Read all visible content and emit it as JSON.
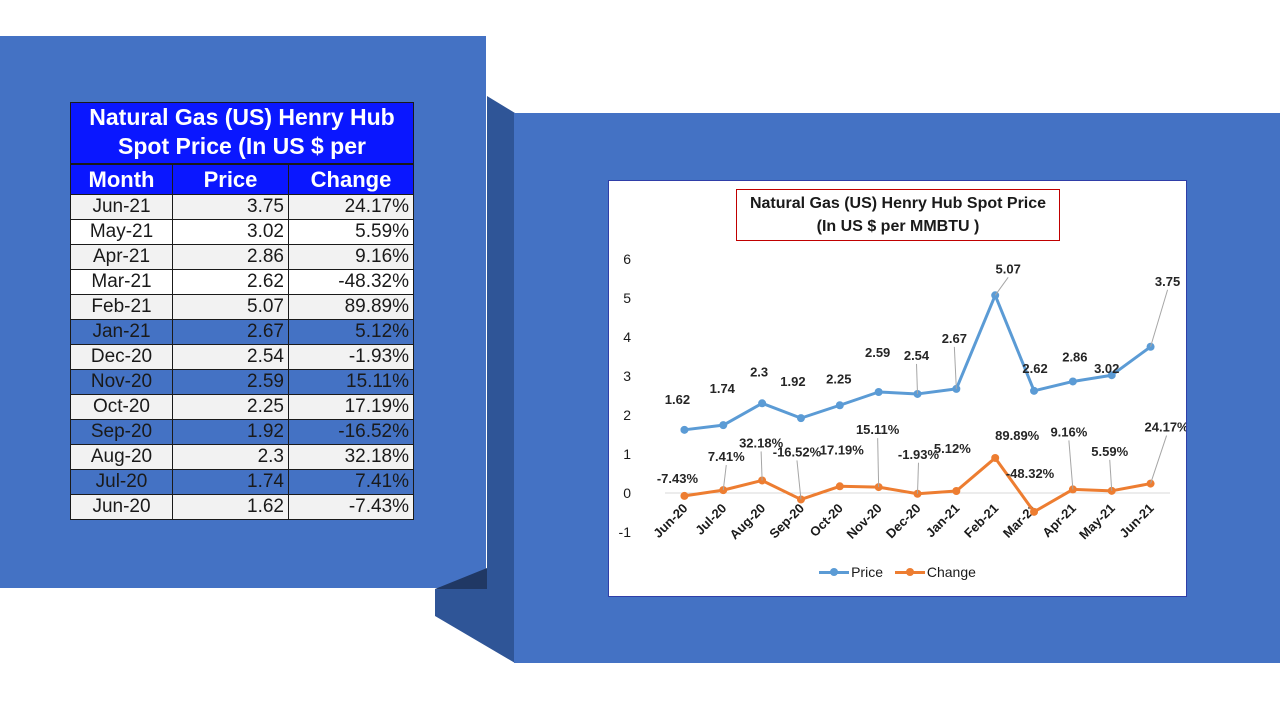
{
  "table": {
    "title": "Natural Gas (US) Henry Hub Spot Price (In US $ per",
    "headers": [
      "Month",
      "Price",
      "Change"
    ],
    "rows": [
      {
        "month": "Jun-21",
        "price": "3.75",
        "change": "24.17%",
        "style": "light"
      },
      {
        "month": "May-21",
        "price": "3.02",
        "change": "5.59%",
        "style": "white"
      },
      {
        "month": "Apr-21",
        "price": "2.86",
        "change": "9.16%",
        "style": "light"
      },
      {
        "month": "Mar-21",
        "price": "2.62",
        "change": "-48.32%",
        "style": "white"
      },
      {
        "month": "Feb-21",
        "price": "5.07",
        "change": "89.89%",
        "style": "light"
      },
      {
        "month": "Jan-21",
        "price": "2.67",
        "change": "5.12%",
        "style": "blue"
      },
      {
        "month": "Dec-20",
        "price": "2.54",
        "change": "-1.93%",
        "style": "light"
      },
      {
        "month": "Nov-20",
        "price": "2.59",
        "change": "15.11%",
        "style": "blue"
      },
      {
        "month": "Oct-20",
        "price": "2.25",
        "change": "17.19%",
        "style": "light"
      },
      {
        "month": "Sep-20",
        "price": "1.92",
        "change": "-16.52%",
        "style": "blue"
      },
      {
        "month": "Aug-20",
        "price": "2.3",
        "change": "32.18%",
        "style": "light"
      },
      {
        "month": "Jul-20",
        "price": "1.74",
        "change": "7.41%",
        "style": "blue"
      },
      {
        "month": "Jun-20",
        "price": "1.62",
        "change": "-7.43%",
        "style": "light"
      }
    ]
  },
  "colors": {
    "panel": "#4472c4",
    "header": "#0a17ff",
    "price_series": "#5b9bd5",
    "change_series": "#ed7d31",
    "title_border": "#c00000"
  },
  "chart_data": {
    "type": "line",
    "title_line1": "Natural Gas (US) Henry Hub Spot Price",
    "title_line2": "(In US $ per MMBTU )",
    "categories": [
      "Jun-20",
      "Jul-20",
      "Aug-20",
      "Sep-20",
      "Oct-20",
      "Nov-20",
      "Dec-20",
      "Jan-21",
      "Feb-21",
      "Mar-21",
      "Apr-21",
      "May-21",
      "Jun-21"
    ],
    "ylim": [
      -1,
      6
    ],
    "yticks": [
      "-1",
      "0",
      "1",
      "2",
      "3",
      "4",
      "5",
      "6"
    ],
    "grid": false,
    "legend_position": "bottom",
    "series": [
      {
        "name": "Price",
        "values": [
          1.62,
          1.74,
          2.3,
          1.92,
          2.25,
          2.59,
          2.54,
          2.67,
          5.07,
          2.62,
          2.86,
          3.02,
          3.75
        ],
        "labels": [
          "1.62",
          "1.74",
          "2.3",
          "1.92",
          "2.25",
          "2.59",
          "2.54",
          "2.67",
          "5.07",
          "2.62",
          "2.86",
          "3.02",
          "3.75"
        ]
      },
      {
        "name": "Change",
        "values": [
          -0.0743,
          0.0741,
          0.3218,
          -0.1652,
          0.1719,
          0.1511,
          -0.0193,
          0.0512,
          0.8989,
          -0.4832,
          0.0916,
          0.0559,
          0.2417
        ],
        "labels": [
          "-7.43%",
          "7.41%",
          "32.18%",
          "-16.52%",
          "17.19%",
          "15.11%",
          "-1.93%",
          "5.12%",
          "89.89%",
          "-48.32%",
          "9.16%",
          "5.59%",
          "24.17%"
        ]
      }
    ]
  }
}
